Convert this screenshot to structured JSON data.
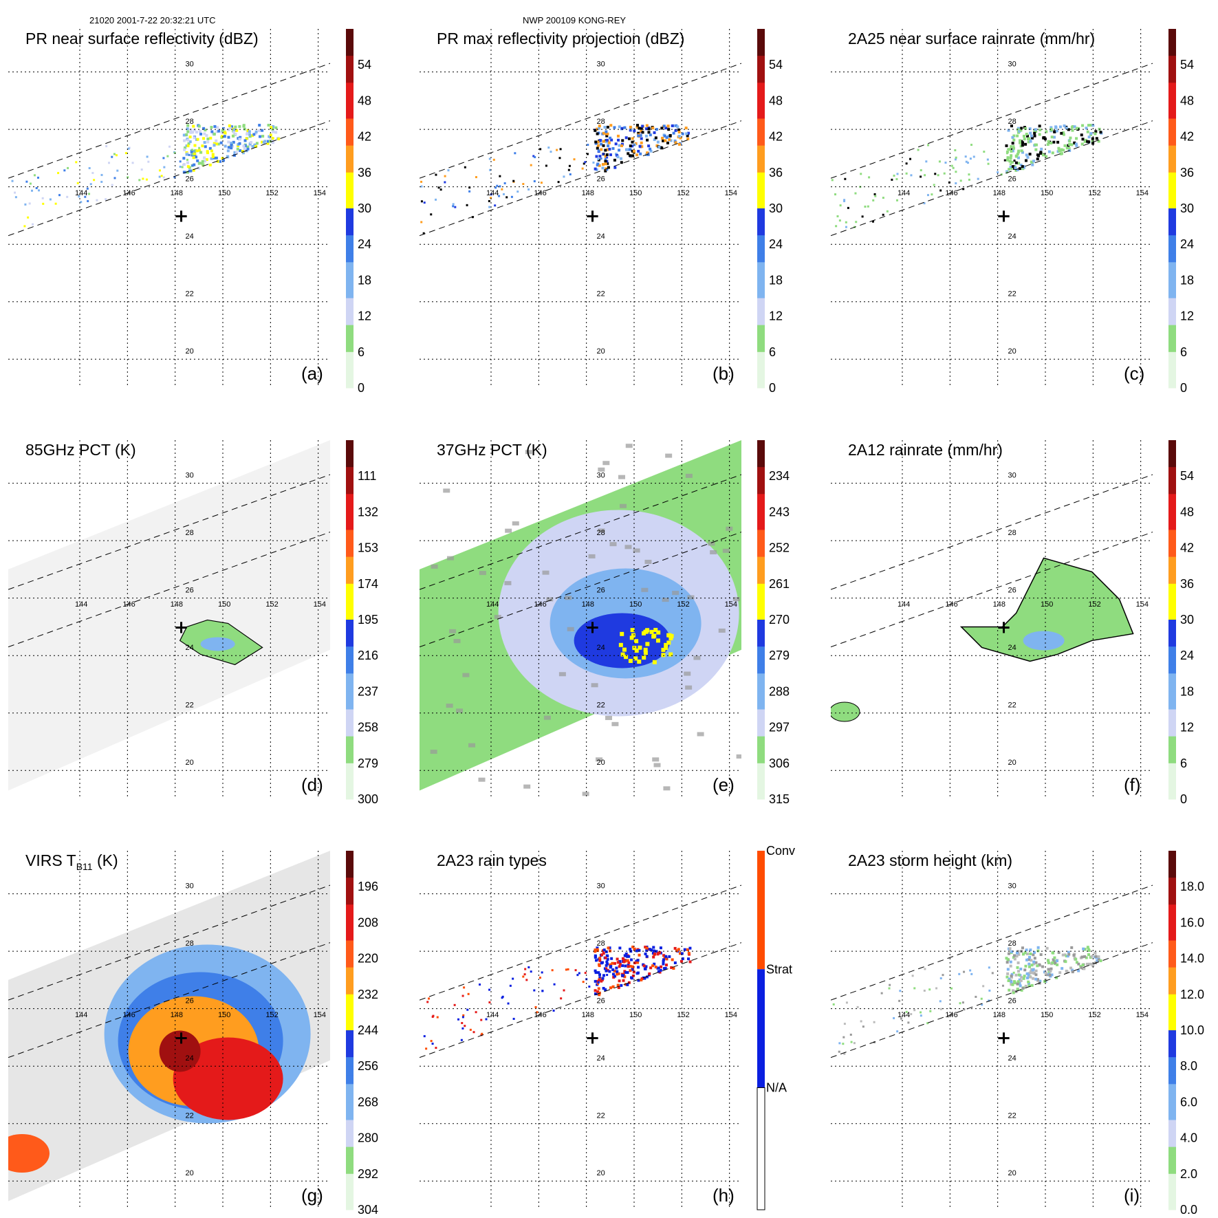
{
  "header": {
    "left": "21020 2001-7-22 20:32:21 UTC",
    "center": "NWP 200109 KONG-REY"
  },
  "chart_data": [
    {
      "id": "a",
      "type": "heatmap",
      "title": "PR near surface reflectivity (dBZ)",
      "label": "(a)",
      "colorbar": {
        "ticks": [
          "54",
          "48",
          "42",
          "36",
          "30",
          "24",
          "18",
          "12",
          "6",
          "0"
        ],
        "range": [
          0,
          60
        ],
        "top_tick": 54
      },
      "lon_ticks": [
        "144",
        "146",
        "148",
        "150",
        "152",
        "154"
      ],
      "lat_ticks": [
        "30",
        "28",
        "26",
        "24",
        "22",
        "20"
      ],
      "field": "pr_swath",
      "color_scheme": "light"
    },
    {
      "id": "b",
      "type": "heatmap",
      "title": "PR max reflectivity projection (dBZ)",
      "label": "(b)",
      "colorbar": {
        "ticks": [
          "54",
          "48",
          "42",
          "36",
          "30",
          "24",
          "18",
          "12",
          "6",
          "0"
        ],
        "range": [
          0,
          60
        ]
      },
      "lon_ticks": [
        "144",
        "146",
        "148",
        "150",
        "152",
        "154"
      ],
      "lat_ticks": [
        "30",
        "28",
        "26",
        "24",
        "22",
        "20"
      ],
      "field": "pr_swath",
      "color_scheme": "blue"
    },
    {
      "id": "c",
      "type": "heatmap",
      "title": "2A25 near surface rainrate (mm/hr)",
      "label": "(c)",
      "colorbar": {
        "ticks": [
          "54",
          "48",
          "42",
          "36",
          "30",
          "24",
          "18",
          "12",
          "6",
          "0"
        ],
        "range": [
          0,
          60
        ]
      },
      "lon_ticks": [
        "144",
        "146",
        "148",
        "150",
        "152",
        "154"
      ],
      "lat_ticks": [
        "30",
        "28",
        "26",
        "24",
        "22",
        "20"
      ],
      "field": "pr_swath",
      "color_scheme": "green"
    },
    {
      "id": "d",
      "type": "heatmap",
      "title": "85GHz PCT (K)",
      "label": "(d)",
      "colorbar": {
        "ticks": [
          "111",
          "132",
          "153",
          "174",
          "195",
          "216",
          "237",
          "258",
          "279",
          "300"
        ],
        "range": [
          90,
          300
        ]
      },
      "lon_ticks": [
        "144",
        "146",
        "148",
        "150",
        "152",
        "154"
      ],
      "lat_ticks": [
        "30",
        "28",
        "26",
        "24",
        "22",
        "20"
      ],
      "field": "tmi_swath",
      "color_scheme": "gray"
    },
    {
      "id": "e",
      "type": "heatmap",
      "title": "37GHz PCT (K)",
      "label": "(e)",
      "colorbar": {
        "ticks": [
          "234",
          "243",
          "252",
          "261",
          "270",
          "279",
          "288",
          "297",
          "306",
          "315"
        ],
        "range": [
          225,
          315
        ]
      },
      "lon_ticks": [
        "144",
        "146",
        "148",
        "150",
        "152",
        "154"
      ],
      "lat_ticks": [
        "30",
        "28",
        "26",
        "24",
        "22",
        "20"
      ],
      "field": "tmi_swath",
      "color_scheme": "green_fill"
    },
    {
      "id": "f",
      "type": "heatmap",
      "title": "2A12 rainrate (mm/hr)",
      "label": "(f)",
      "colorbar": {
        "ticks": [
          "54",
          "48",
          "42",
          "36",
          "30",
          "24",
          "18",
          "12",
          "6",
          "0"
        ],
        "range": [
          0,
          60
        ]
      },
      "lon_ticks": [
        "144",
        "146",
        "148",
        "150",
        "152",
        "154"
      ],
      "lat_ticks": [
        "30",
        "28",
        "26",
        "24",
        "22",
        "20"
      ],
      "field": "tmi_swath",
      "color_scheme": "rain"
    },
    {
      "id": "g",
      "type": "heatmap",
      "title": "VIRS T",
      "title_sub": "B11",
      "title_suffix": " (K)",
      "label": "(g)",
      "colorbar": {
        "ticks": [
          "196",
          "208",
          "220",
          "232",
          "244",
          "256",
          "268",
          "280",
          "292",
          "304"
        ],
        "range": [
          184,
          304
        ]
      },
      "lon_ticks": [
        "144",
        "146",
        "148",
        "150",
        "152",
        "154"
      ],
      "lat_ticks": [
        "30",
        "28",
        "26",
        "24",
        "22",
        "20"
      ],
      "field": "tmi_swath",
      "color_scheme": "ir"
    },
    {
      "id": "h",
      "type": "heatmap",
      "title": "2A23 rain types",
      "label": "(h)",
      "colorbar": {
        "categorical": true,
        "ticks": [
          "Conv",
          "Strat",
          "N/A"
        ]
      },
      "lon_ticks": [
        "144",
        "146",
        "148",
        "150",
        "152",
        "154"
      ],
      "lat_ticks": [
        "30",
        "28",
        "26",
        "24",
        "22",
        "20"
      ],
      "field": "pr_swath",
      "color_scheme": "types"
    },
    {
      "id": "i",
      "type": "heatmap",
      "title": "2A23 storm height (km)",
      "label": "(i)",
      "colorbar": {
        "ticks": [
          "18.0",
          "16.0",
          "14.0",
          "12.0",
          "10.0",
          "8.0",
          "6.0",
          "4.0",
          "2.0",
          "0.0"
        ],
        "range": [
          0,
          20
        ]
      },
      "lon_ticks": [
        "144",
        "146",
        "148",
        "150",
        "152",
        "154"
      ],
      "lat_ticks": [
        "30",
        "28",
        "26",
        "24",
        "22",
        "20"
      ],
      "field": "pr_swath",
      "color_scheme": "height"
    }
  ],
  "storm_center": {
    "lon": 148.2,
    "lat": 25.0
  },
  "colors": {
    "scale": [
      "#e4f6e2",
      "#8fdc7f",
      "#cfd5f4",
      "#7fb4f0",
      "#3f7fe8",
      "#1f3ae0",
      "#ffff00",
      "#ff9d1f",
      "#ff5a1a",
      "#e41a1a",
      "#a01010",
      "#5a0a0a"
    ],
    "types": {
      "conv": "#ff4c00",
      "strat": "#0a1fe0",
      "na": "#ffffff"
    }
  }
}
